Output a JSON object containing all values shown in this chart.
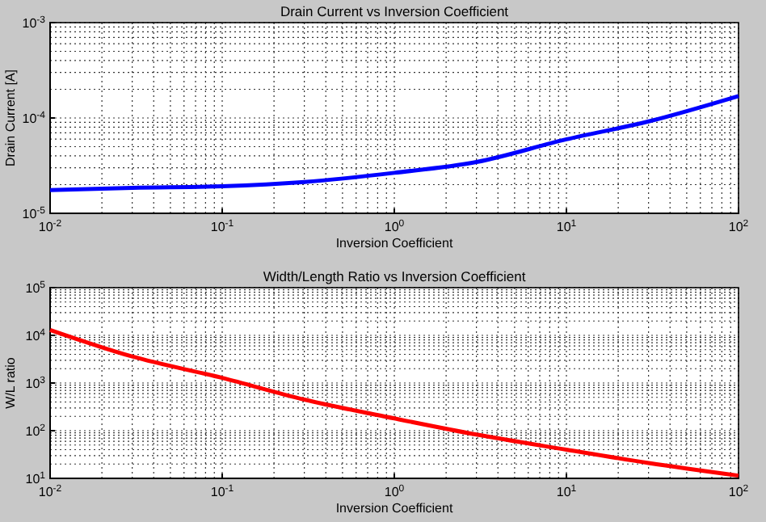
{
  "chart_data": [
    {
      "type": "line",
      "title": "Drain Current vs Inversion Coefficient",
      "xlabel": "Inversion Coefficient",
      "ylabel": "Drain Current [A]",
      "log": "xy",
      "grid": true,
      "x": [
        0.01,
        0.03,
        0.1,
        0.3,
        1,
        3,
        10,
        30,
        100
      ],
      "series": [
        {
          "color": "#0000ff",
          "values": [
            1.75e-05,
            1.85e-05,
            1.92e-05,
            2.13e-05,
            2.66e-05,
            3.45e-05,
            5.97e-05,
            9.2e-05,
            0.00017
          ]
        }
      ],
      "xlim": [
        0.01,
        100
      ],
      "ylim": [
        1e-05,
        0.001
      ],
      "xticks": [
        {
          "value": 0.01,
          "label": "10$^{-2}$"
        },
        {
          "value": 0.1,
          "label": "10$^{-1}$"
        },
        {
          "value": 1,
          "label": "10$^{0}$"
        },
        {
          "value": 10,
          "label": "10$^{1}$"
        },
        {
          "value": 100,
          "label": "10$^{2}$"
        }
      ],
      "yticks": [
        {
          "value": 1e-05,
          "label": "10$^{-5}$"
        },
        {
          "value": 0.0001,
          "label": "10$^{-4}$"
        },
        {
          "value": 0.001,
          "label": "10$^{-3}$"
        }
      ]
    },
    {
      "type": "line",
      "title": "Width/Length Ratio vs Inversion Coefficient",
      "xlabel": "Inversion Coefficient",
      "ylabel": "W/L ratio",
      "log": "xy",
      "grid": true,
      "x": [
        0.01,
        0.03,
        0.1,
        0.3,
        1,
        3,
        10,
        30,
        100
      ],
      "series": [
        {
          "color": "#ff0000",
          "values": [
            13000,
            3600,
            1280,
            450,
            181,
            83,
            40,
            21,
            11.4
          ]
        }
      ],
      "xlim": [
        0.01,
        100
      ],
      "ylim": [
        10,
        100000
      ],
      "xticks": [
        {
          "value": 0.01,
          "label": "10$^{-2}$"
        },
        {
          "value": 0.1,
          "label": "10$^{-1}$"
        },
        {
          "value": 1,
          "label": "10$^{0}$"
        },
        {
          "value": 10,
          "label": "10$^{1}$"
        },
        {
          "value": 100,
          "label": "10$^{2}$"
        }
      ],
      "yticks": [
        {
          "value": 10,
          "label": "10$^{1}$"
        },
        {
          "value": 100,
          "label": "10$^{2}$"
        },
        {
          "value": 1000,
          "label": "10$^{3}$"
        },
        {
          "value": 10000,
          "label": "10$^{4}$"
        },
        {
          "value": 100000,
          "label": "10$^{5}$"
        }
      ]
    }
  ]
}
